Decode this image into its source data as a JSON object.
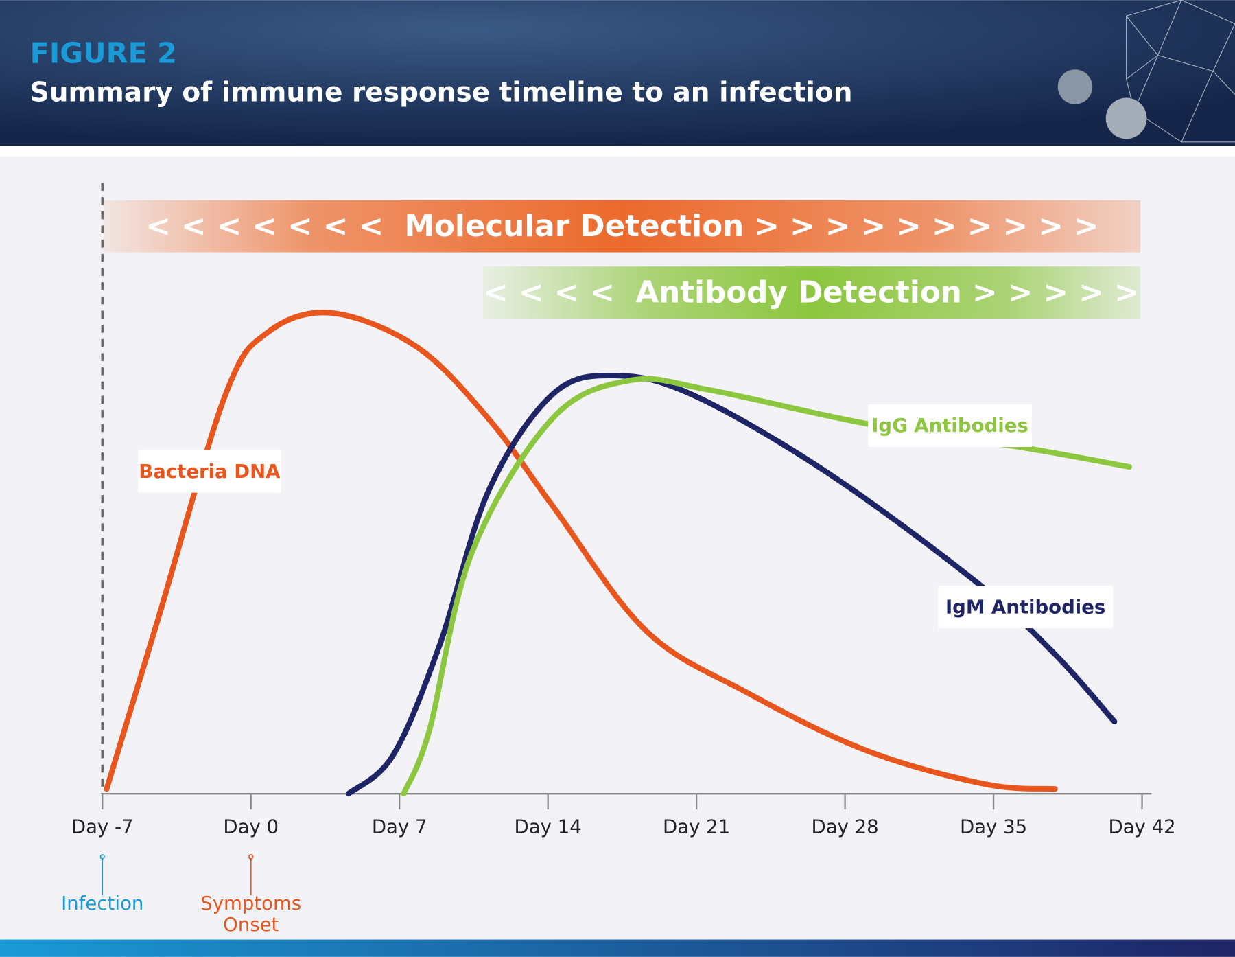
{
  "header": {
    "figure": "FIGURE 2",
    "title": "Summary of immune response timeline to an infection"
  },
  "chart_data": {
    "type": "line",
    "xlim": [
      -7,
      42
    ],
    "ylim": [
      0,
      100
    ],
    "xticks": [
      {
        "value": -7,
        "label": "Day -7"
      },
      {
        "value": 0,
        "label": "Day 0"
      },
      {
        "value": 7,
        "label": "Day 7"
      },
      {
        "value": 14,
        "label": "Day 14"
      },
      {
        "value": 21,
        "label": "Day 21"
      },
      {
        "value": 28,
        "label": "Day 28"
      },
      {
        "value": 35,
        "label": "Day 35"
      },
      {
        "value": 42,
        "label": "Day 42"
      }
    ],
    "bands": [
      {
        "label": "< < < < < < <  Molecular Detection > > > > > > > > > >",
        "color": "#ec6a2c"
      },
      {
        "label": "< < < <  Antibody Detection > > > > >",
        "color": "#8dc63f"
      }
    ],
    "series": [
      {
        "name": "Bacteria DNA",
        "color": "#e8561e",
        "x": [
          -6.8,
          -4.4,
          -1.2,
          0.8,
          3.8,
          7.8,
          11.2,
          14.2,
          18.6,
          23.4,
          29,
          34.6,
          37.9
        ],
        "values": [
          1,
          36,
          83,
          96,
          100,
          93,
          78,
          60,
          34,
          21,
          9,
          2,
          1
        ]
      },
      {
        "name": "IgM Antibodies",
        "color": "#1f2466",
        "x": [
          4.6,
          6.7,
          8.9,
          11.2,
          14.2,
          17.1,
          20.8,
          27.1,
          34.2,
          37.9,
          40.7
        ],
        "values": [
          0,
          8,
          31,
          63,
          83,
          87,
          83,
          67,
          44,
          29,
          15
        ]
      },
      {
        "name": "IgG Antibodies",
        "color": "#8dc63f",
        "x": [
          7.2,
          8.4,
          10.4,
          14.2,
          17.9,
          21.6,
          29,
          36.4,
          41.4
        ],
        "values": [
          0,
          13,
          50,
          78,
          86,
          84,
          77,
          72,
          68
        ]
      }
    ],
    "markers": [
      {
        "lines": [
          "Infection"
        ],
        "x": -7,
        "color": "#1a9ad6"
      },
      {
        "lines": [
          "Symptoms",
          "Onset"
        ],
        "x": 0,
        "color": "#e8561e"
      }
    ]
  }
}
